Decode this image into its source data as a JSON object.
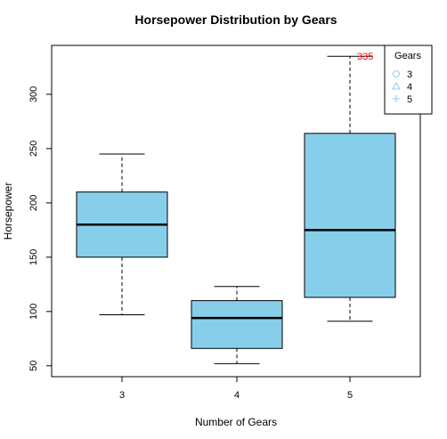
{
  "chart_data": {
    "type": "box",
    "title": "Horsepower Distribution by Gears",
    "xlabel": "Number of Gears",
    "ylabel": "Horsepower",
    "categories": [
      "3",
      "4",
      "5"
    ],
    "ylim": [
      40,
      345
    ],
    "yticks": [
      50,
      100,
      150,
      200,
      250,
      300
    ],
    "boxes": [
      {
        "category": "3",
        "whisker_low": 97,
        "q1": 150,
        "median": 180,
        "q3": 210,
        "whisker_high": 245
      },
      {
        "category": "4",
        "whisker_low": 52,
        "q1": 66,
        "median": 94,
        "q3": 110,
        "whisker_high": 123
      },
      {
        "category": "5",
        "whisker_low": 91,
        "q1": 113,
        "median": 175,
        "q3": 264,
        "whisker_high": 335
      }
    ],
    "annotations": [
      {
        "text": "335",
        "x": "5",
        "y": 335,
        "color": "#ff0000"
      }
    ],
    "legend": {
      "title": "Gears",
      "position": "top-right",
      "entries": [
        {
          "label": "3",
          "symbol": "circle"
        },
        {
          "label": "4",
          "symbol": "triangle"
        },
        {
          "label": "5",
          "symbol": "plus"
        }
      ]
    },
    "box_fill": "#87ceeb",
    "legend_symbol_color": "#87ceeb",
    "grid": false
  }
}
